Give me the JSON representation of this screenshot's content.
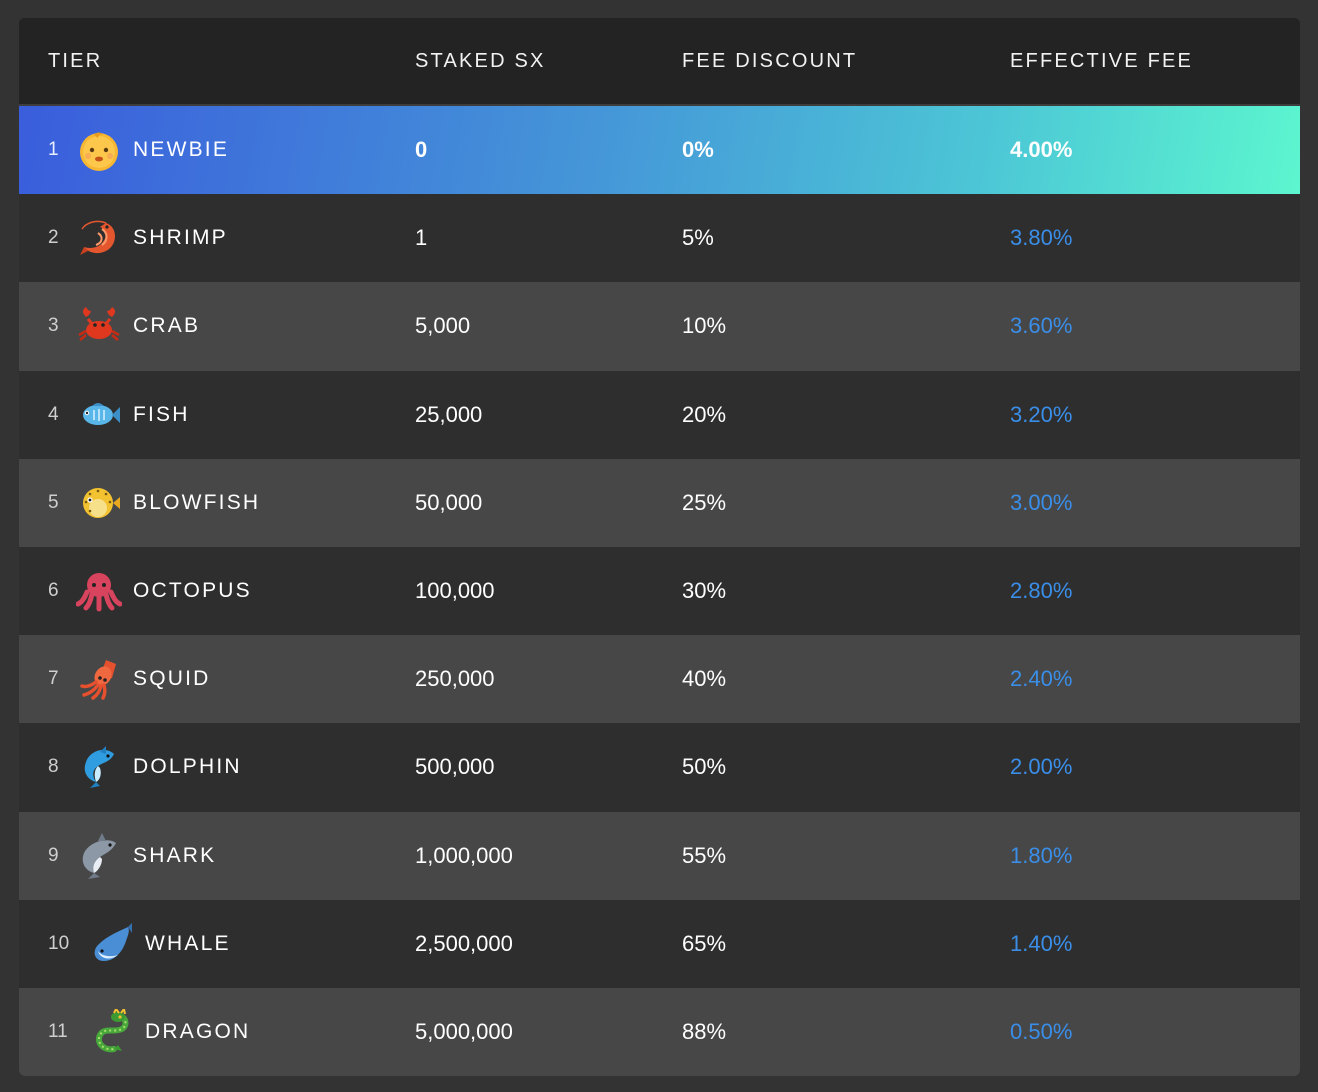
{
  "header": {
    "tier": "TIER",
    "staked": "STAKED SX",
    "discount": "FEE DISCOUNT",
    "effective": "EFFECTIVE FEE"
  },
  "colors": {
    "fee_text": "#3a8ee8",
    "row_dark": "#2e2e2e",
    "row_light": "#474747",
    "active_gradient_start": "#3a5ddc",
    "active_gradient_end": "#5cf6cf"
  },
  "rows": [
    {
      "num": "1",
      "icon": "baby-face-icon",
      "name": "NEWBIE",
      "staked": "0",
      "discount": "0%",
      "fee": "4.00%"
    },
    {
      "num": "2",
      "icon": "shrimp-icon",
      "name": "SHRIMP",
      "staked": "1",
      "discount": "5%",
      "fee": "3.80%"
    },
    {
      "num": "3",
      "icon": "crab-icon",
      "name": "CRAB",
      "staked": "5,000",
      "discount": "10%",
      "fee": "3.60%"
    },
    {
      "num": "4",
      "icon": "fish-icon",
      "name": "FISH",
      "staked": "25,000",
      "discount": "20%",
      "fee": "3.20%"
    },
    {
      "num": "5",
      "icon": "blowfish-icon",
      "name": "BLOWFISH",
      "staked": "50,000",
      "discount": "25%",
      "fee": "3.00%"
    },
    {
      "num": "6",
      "icon": "octopus-icon",
      "name": "OCTOPUS",
      "staked": "100,000",
      "discount": "30%",
      "fee": "2.80%"
    },
    {
      "num": "7",
      "icon": "squid-icon",
      "name": "SQUID",
      "staked": "250,000",
      "discount": "40%",
      "fee": "2.40%"
    },
    {
      "num": "8",
      "icon": "dolphin-icon",
      "name": "DOLPHIN",
      "staked": "500,000",
      "discount": "50%",
      "fee": "2.00%"
    },
    {
      "num": "9",
      "icon": "shark-icon",
      "name": "SHARK",
      "staked": "1,000,000",
      "discount": "55%",
      "fee": "1.80%"
    },
    {
      "num": "10",
      "icon": "whale-icon",
      "name": "WHALE",
      "staked": "2,500,000",
      "discount": "65%",
      "fee": "1.40%"
    },
    {
      "num": "11",
      "icon": "dragon-icon",
      "name": "DRAGON",
      "staked": "5,000,000",
      "discount": "88%",
      "fee": "0.50%"
    }
  ]
}
